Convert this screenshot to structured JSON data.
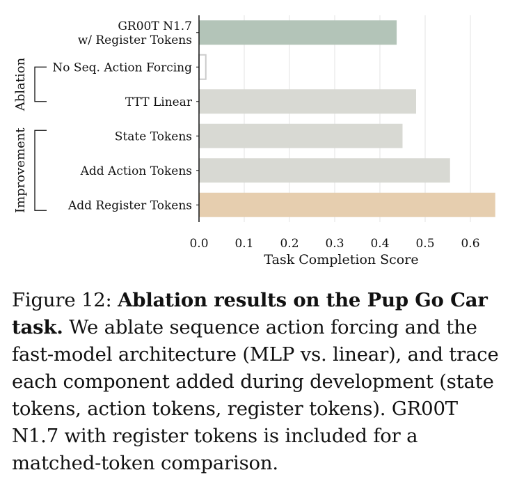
{
  "chart_data": {
    "type": "bar",
    "orientation": "horizontal",
    "categories": [
      "GR00T N1.7\nw/ Register Tokens",
      "No Seq. Action Forcing",
      "TTT Linear",
      "State Tokens",
      "Add Action Tokens",
      "Add Register Tokens"
    ],
    "values": [
      0.437,
      0.015,
      0.48,
      0.45,
      0.555,
      0.655
    ],
    "bar_colors": [
      "#b3c4b8",
      "#ffffff",
      "#d8d9d3",
      "#d8d9d3",
      "#d8d9d3",
      "#e6ceaf"
    ],
    "bar_edge_colors": [
      "none",
      "#cccccc",
      "none",
      "none",
      "none",
      "none"
    ],
    "xlabel": "Task Completion Score",
    "ylabel": "",
    "xlim": [
      0.0,
      0.66
    ],
    "xticks": [
      "0.0",
      "0.1",
      "0.2",
      "0.3",
      "0.4",
      "0.5",
      "0.6"
    ],
    "grid": "vertical",
    "groups": [
      {
        "name": "Ablation",
        "categories": [
          "No Seq. Action Forcing",
          "TTT Linear"
        ]
      },
      {
        "name": "Improvement",
        "categories": [
          "State Tokens",
          "Add Action Tokens",
          "Add Register Tokens"
        ]
      }
    ]
  },
  "caption": {
    "prefix": "Figure 12: ",
    "bold": "Ablation results on the Pup Go Car task.",
    "body": " We ablate sequence action forcing and the fast-model architecture (MLP vs. linear), and trace each component added during development (state tokens, action tokens, register tokens). GR00T N1.7 with register tokens is included for a matched-token comparison."
  }
}
